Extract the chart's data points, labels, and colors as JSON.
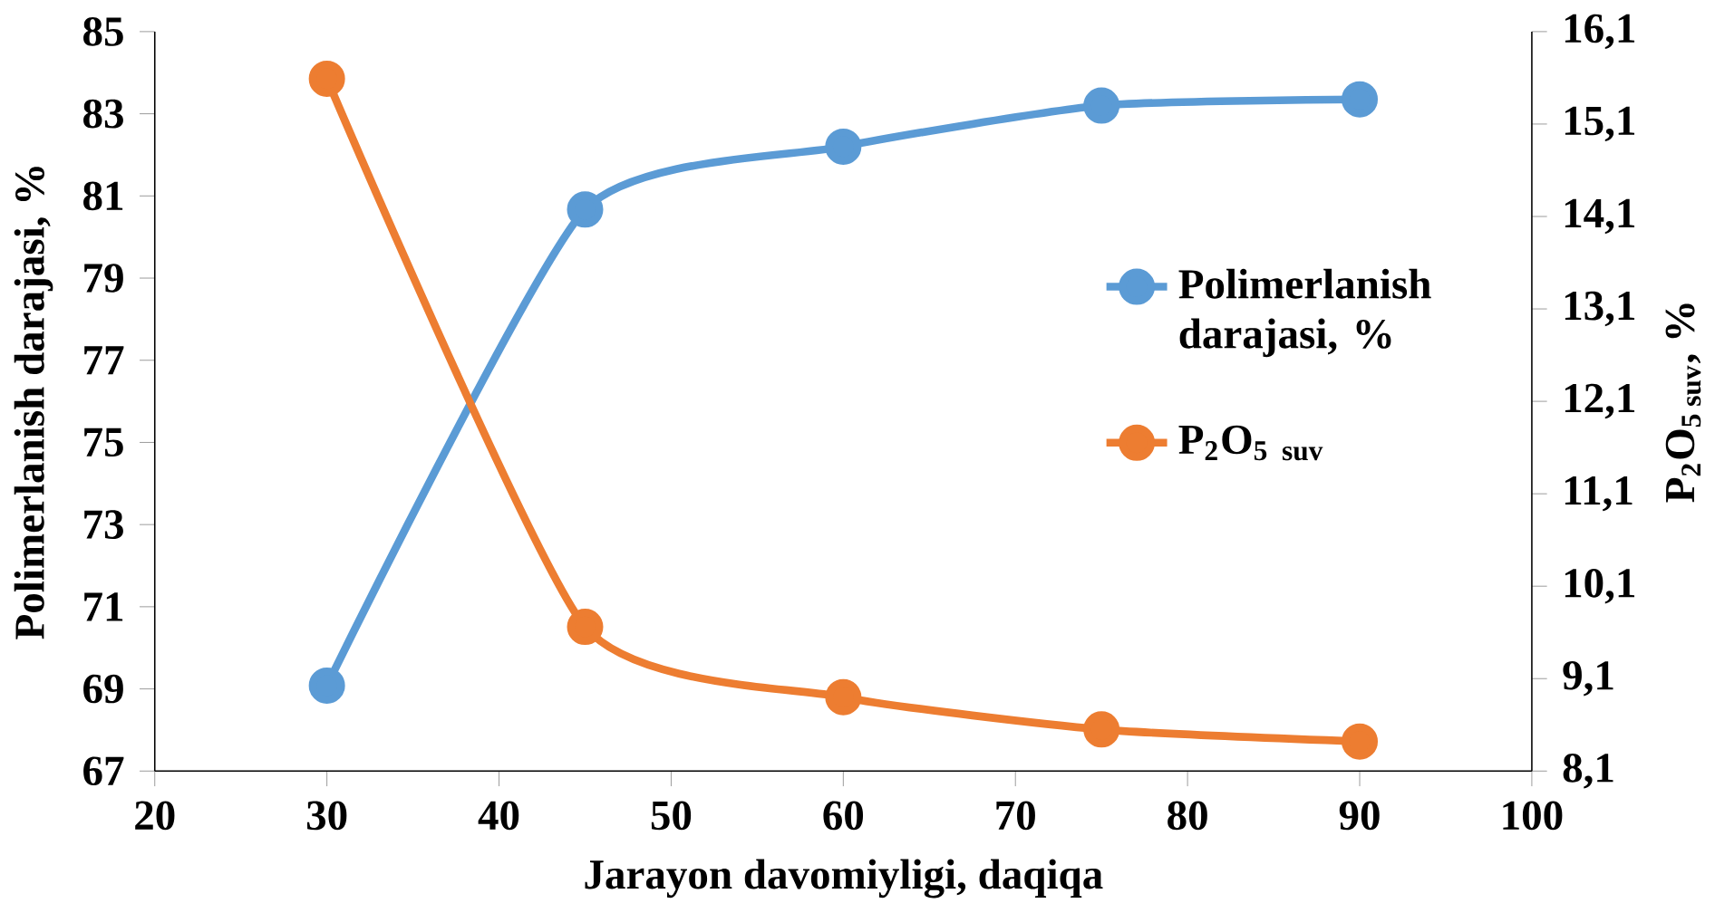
{
  "chart_data": {
    "type": "line",
    "xlabel": "Jarayon davomiyligi, daqiqa",
    "ylabel": "Polimerlanish darajasi, %",
    "y2label": "P$_{2}$O$_{5 suv}$, %",
    "x": [
      30,
      45,
      60,
      75,
      90
    ],
    "series": [
      {
        "name": "Polimerlanish darajasi, %",
        "color": "#5b9bd5",
        "values": [
          69.08,
          80.67,
          82.2,
          83.2,
          83.35
        ]
      },
      {
        "name": "P$_{2}$O$_{5 suv}$",
        "color": "#ed7d31",
        "axis": "y2",
        "values": [
          15.59,
          9.66,
          8.9,
          8.55,
          8.42
        ]
      }
    ],
    "xlim": [
      20,
      100
    ],
    "xticks": [
      20,
      30,
      40,
      50,
      60,
      70,
      80,
      90,
      100
    ],
    "ylim": [
      67,
      85
    ],
    "yticks": [
      67,
      69,
      71,
      73,
      75,
      77,
      79,
      81,
      83,
      85
    ],
    "y2lim": [
      8.1,
      16.1
    ],
    "y2ticks": [
      {
        "value": 8.1,
        "label": "8,1"
      },
      {
        "value": 9.1,
        "label": "9,1"
      },
      {
        "value": 10.1,
        "label": "10,1"
      },
      {
        "value": 11.1,
        "label": "11,1"
      },
      {
        "value": 12.1,
        "label": "12,1"
      },
      {
        "value": 13.1,
        "label": "13,1"
      },
      {
        "value": 14.1,
        "label": "14,1"
      },
      {
        "value": 15.1,
        "label": "15,1"
      },
      {
        "value": 16.1,
        "label": "16,1"
      }
    ],
    "marker": "circle",
    "line_style": "solid",
    "grid": false,
    "legend": "right"
  }
}
